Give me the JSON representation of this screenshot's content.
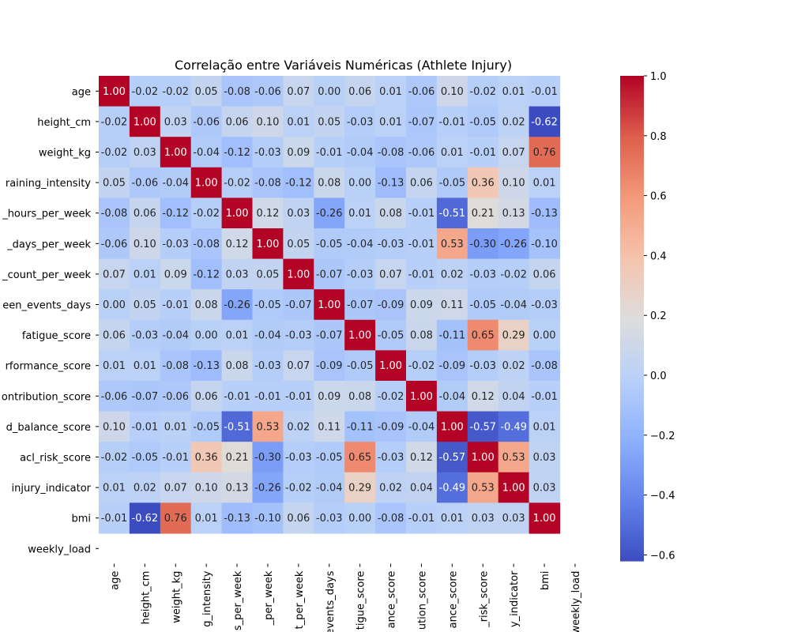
{
  "chart_data": {
    "type": "heatmap",
    "title": "Correlação entre Variáveis Numéricas (Athlete Injury)",
    "xlabel": "",
    "ylabel": "",
    "variables": [
      "age",
      "height_cm",
      "weight_kg",
      "training_intensity",
      "training_hours_per_week",
      "recovery_days_per_week",
      "match_count_per_week",
      "rest_between_events_days",
      "fatigue_score",
      "performance_score",
      "team_contribution_score",
      "load_balance_score",
      "acl_risk_score",
      "injury_indicator",
      "bmi",
      "weekly_load"
    ],
    "row_labels_displayed": [
      "age",
      "height_cm",
      "weight_kg",
      "raining_intensity",
      "_hours_per_week",
      "_days_per_week",
      "_count_per_week",
      "een_events_days",
      "fatigue_score",
      "rformance_score",
      "ontribution_score",
      "d_balance_score",
      "acl_risk_score",
      "injury_indicator",
      "bmi",
      "weekly_load"
    ],
    "col_labels_displayed": [
      "age",
      "height_cm",
      "weight_kg",
      "g_intensity",
      "s_per_week",
      "_per_week",
      "t_per_week",
      "events_days",
      "tigue_score",
      "ance_score",
      "ution_score",
      "ance_score",
      "_risk_score",
      "y_indicator",
      "bmi",
      "weekly_load"
    ],
    "matrix": [
      [
        1.0,
        -0.02,
        -0.02,
        0.05,
        -0.08,
        -0.06,
        0.07,
        0.0,
        0.06,
        0.01,
        -0.06,
        0.1,
        -0.02,
        0.01,
        -0.01,
        null
      ],
      [
        -0.02,
        1.0,
        0.03,
        -0.06,
        0.06,
        0.1,
        0.01,
        0.05,
        -0.03,
        0.01,
        -0.07,
        -0.01,
        -0.05,
        0.02,
        -0.62,
        null
      ],
      [
        -0.02,
        0.03,
        1.0,
        -0.04,
        -0.12,
        -0.03,
        0.09,
        -0.01,
        -0.04,
        -0.08,
        -0.06,
        0.01,
        -0.01,
        0.07,
        0.76,
        null
      ],
      [
        0.05,
        -0.06,
        -0.04,
        1.0,
        -0.02,
        -0.08,
        -0.12,
        0.08,
        -0.0,
        -0.13,
        0.06,
        -0.05,
        0.36,
        0.1,
        0.01,
        null
      ],
      [
        -0.08,
        0.06,
        -0.12,
        -0.02,
        1.0,
        0.12,
        0.03,
        -0.26,
        0.01,
        0.08,
        -0.01,
        -0.51,
        0.21,
        0.13,
        -0.13,
        null
      ],
      [
        -0.06,
        0.1,
        -0.03,
        -0.08,
        0.12,
        1.0,
        0.05,
        -0.05,
        -0.04,
        -0.03,
        -0.01,
        0.53,
        -0.3,
        -0.26,
        -0.1,
        null
      ],
      [
        0.07,
        0.01,
        0.09,
        -0.12,
        0.03,
        0.05,
        1.0,
        -0.07,
        -0.03,
        0.07,
        -0.01,
        0.02,
        -0.03,
        -0.02,
        0.06,
        null
      ],
      [
        0.0,
        0.05,
        -0.01,
        0.08,
        -0.26,
        -0.05,
        -0.07,
        1.0,
        -0.07,
        -0.09,
        0.09,
        0.11,
        -0.05,
        -0.04,
        -0.03,
        null
      ],
      [
        0.06,
        -0.03,
        -0.04,
        -0.0,
        0.01,
        -0.04,
        -0.03,
        -0.07,
        1.0,
        -0.05,
        0.08,
        -0.11,
        0.65,
        0.29,
        -0.0,
        null
      ],
      [
        0.01,
        0.01,
        -0.08,
        -0.13,
        0.08,
        -0.03,
        0.07,
        -0.09,
        -0.05,
        1.0,
        -0.02,
        -0.09,
        -0.03,
        0.02,
        -0.08,
        null
      ],
      [
        -0.06,
        -0.07,
        -0.06,
        0.06,
        -0.01,
        -0.01,
        -0.01,
        0.09,
        0.08,
        -0.02,
        1.0,
        -0.04,
        0.12,
        0.04,
        -0.01,
        null
      ],
      [
        0.1,
        -0.01,
        0.01,
        -0.05,
        -0.51,
        0.53,
        0.02,
        0.11,
        -0.11,
        -0.09,
        -0.04,
        1.0,
        -0.57,
        -0.49,
        0.01,
        null
      ],
      [
        -0.02,
        -0.05,
        -0.01,
        0.36,
        0.21,
        -0.3,
        -0.03,
        -0.05,
        0.65,
        -0.03,
        0.12,
        -0.57,
        1.0,
        0.53,
        0.03,
        null
      ],
      [
        0.01,
        0.02,
        0.07,
        0.1,
        0.13,
        -0.26,
        -0.02,
        -0.04,
        0.29,
        0.02,
        0.04,
        -0.49,
        0.53,
        1.0,
        0.03,
        null
      ],
      [
        -0.01,
        -0.62,
        0.76,
        0.01,
        -0.13,
        -0.1,
        0.06,
        -0.03,
        -0.0,
        -0.08,
        -0.01,
        0.01,
        0.03,
        0.03,
        1.0,
        null
      ],
      [
        null,
        null,
        null,
        null,
        null,
        null,
        null,
        null,
        null,
        null,
        null,
        null,
        null,
        null,
        null,
        null
      ]
    ],
    "value_format": "2 decimals",
    "colormap": "coolwarm",
    "vmin": -0.62,
    "vmax": 1.0,
    "colorbar_ticks": [
      1.0,
      0.8,
      0.6,
      0.4,
      0.2,
      0.0,
      -0.2,
      -0.4,
      -0.6
    ],
    "colorbar_tick_labels": [
      "1.0",
      "0.8",
      "0.6",
      "0.4",
      "0.2",
      "0.0",
      "−0.2",
      "−0.4",
      "−0.6"
    ],
    "grid": false,
    "legend": "colorbar-right"
  }
}
